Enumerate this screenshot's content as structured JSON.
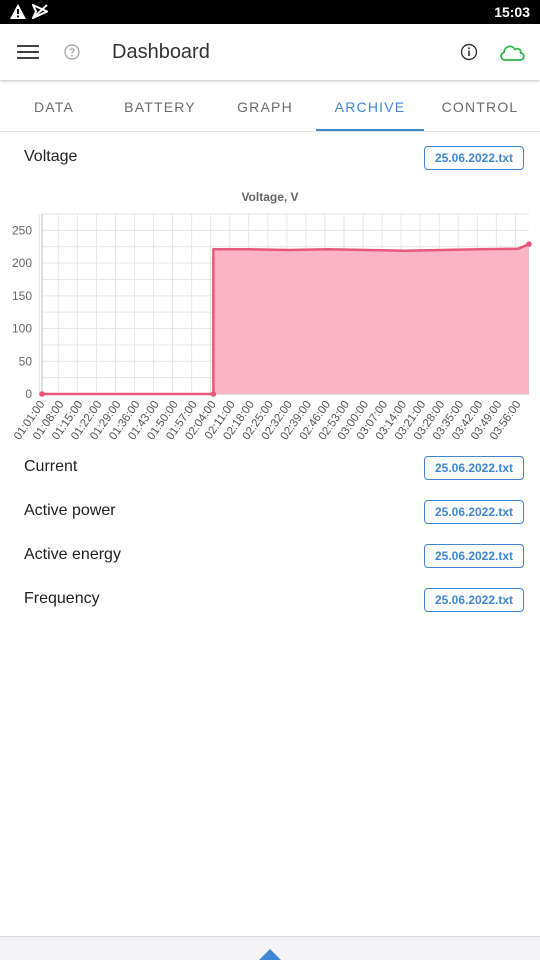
{
  "status_bar": {
    "time": "15:03",
    "icons": [
      "warning-icon",
      "signal-off-icon"
    ]
  },
  "app_bar": {
    "title": "Dashboard",
    "icons": [
      "menu-icon",
      "help-icon",
      "info-icon",
      "cloud-icon"
    ],
    "cloud_color": "#2db84d"
  },
  "tabs": [
    {
      "label": "DATA"
    },
    {
      "label": "BATTERY"
    },
    {
      "label": "GRAPH"
    },
    {
      "label": "ARCHIVE",
      "active": true
    },
    {
      "label": "CONTROL"
    }
  ],
  "accent_color": "#3f86d4",
  "rows": [
    {
      "label": "Voltage",
      "file": "25.06.2022.txt"
    },
    {
      "label": "Current",
      "file": "25.06.2022.txt"
    },
    {
      "label": "Active power",
      "file": "25.06.2022.txt"
    },
    {
      "label": "Active energy",
      "file": "25.06.2022.txt"
    },
    {
      "label": "Frequency",
      "file": "25.06.2022.txt"
    }
  ],
  "chart_data": {
    "type": "area",
    "title": "Voltage, V",
    "xlabel": "",
    "ylabel": "",
    "ylim": [
      0,
      275
    ],
    "yticks": [
      0,
      50,
      100,
      150,
      200,
      250
    ],
    "grid": true,
    "line_color": "#e8587a",
    "fill_color": "#fbb4c6",
    "x_tick_labels": [
      "01:01:00",
      "01:08:00",
      "01:15:00",
      "01:22:00",
      "01:29:00",
      "01:36:00",
      "01:43:00",
      "01:50:00",
      "01:57:00",
      "02:04:00",
      "02:11:00",
      "02:18:00",
      "02:25:00",
      "02:32:00",
      "02:39:00",
      "02:46:00",
      "02:53:00",
      "03:00:00",
      "03:07:00",
      "03:14:00",
      "03:21:00",
      "03:28:00",
      "03:35:00",
      "03:42:00",
      "03:49:00",
      "03:56:00"
    ],
    "series": [
      {
        "x": [
          "01:01:00",
          "01:57:00",
          "02:04:00",
          "02:04:00",
          "02:18:00",
          "02:32:00",
          "02:46:00",
          "03:00:00",
          "03:14:00",
          "03:28:00",
          "03:42:00",
          "03:56:00",
          "04:00:00"
        ],
        "values": [
          0,
          0,
          0,
          221,
          221,
          220,
          221,
          220,
          219,
          220,
          221,
          222,
          229
        ]
      }
    ]
  }
}
